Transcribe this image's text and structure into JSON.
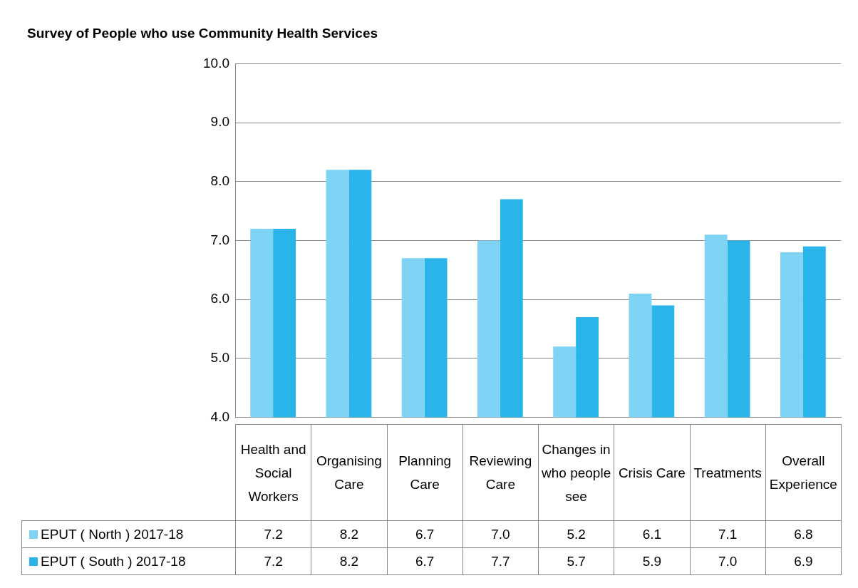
{
  "chart_data": {
    "type": "bar",
    "title": "Survey of People who use Community Health Services",
    "categories": [
      "Health and Social Workers",
      "Organising Care",
      "Planning Care",
      "Reviewing Care",
      "Changes in who people see",
      "Crisis Care",
      "Treatments",
      "Overall Experience"
    ],
    "series": [
      {
        "name": "EPUT ( North ) 2017-18",
        "color": "#7fd3f5",
        "values": [
          7.2,
          8.2,
          6.7,
          7.0,
          5.2,
          6.1,
          7.1,
          6.8
        ],
        "value_labels": [
          "7.2",
          "8.2",
          "6.7",
          "7.0",
          "5.2",
          "6.1",
          "7.1",
          "6.8"
        ]
      },
      {
        "name": "EPUT ( South ) 2017-18",
        "color": "#29b5ea",
        "values": [
          7.2,
          8.2,
          6.7,
          7.7,
          5.7,
          5.9,
          7.0,
          6.9
        ],
        "value_labels": [
          "7.2",
          "8.2",
          "6.7",
          "7.7",
          "5.7",
          "5.9",
          "7.0",
          "6.9"
        ]
      }
    ],
    "ylim": [
      4,
      10
    ],
    "yticks": [
      {
        "value": 4,
        "label": "4.0"
      },
      {
        "value": 5,
        "label": "5.0"
      },
      {
        "value": 6,
        "label": "6.0"
      },
      {
        "value": 7,
        "label": "7.0"
      },
      {
        "value": 8,
        "label": "8.0"
      },
      {
        "value": 9,
        "label": "9.0"
      },
      {
        "value": 10,
        "label": "10.0"
      }
    ],
    "grid": "y",
    "legend": "bottom"
  }
}
